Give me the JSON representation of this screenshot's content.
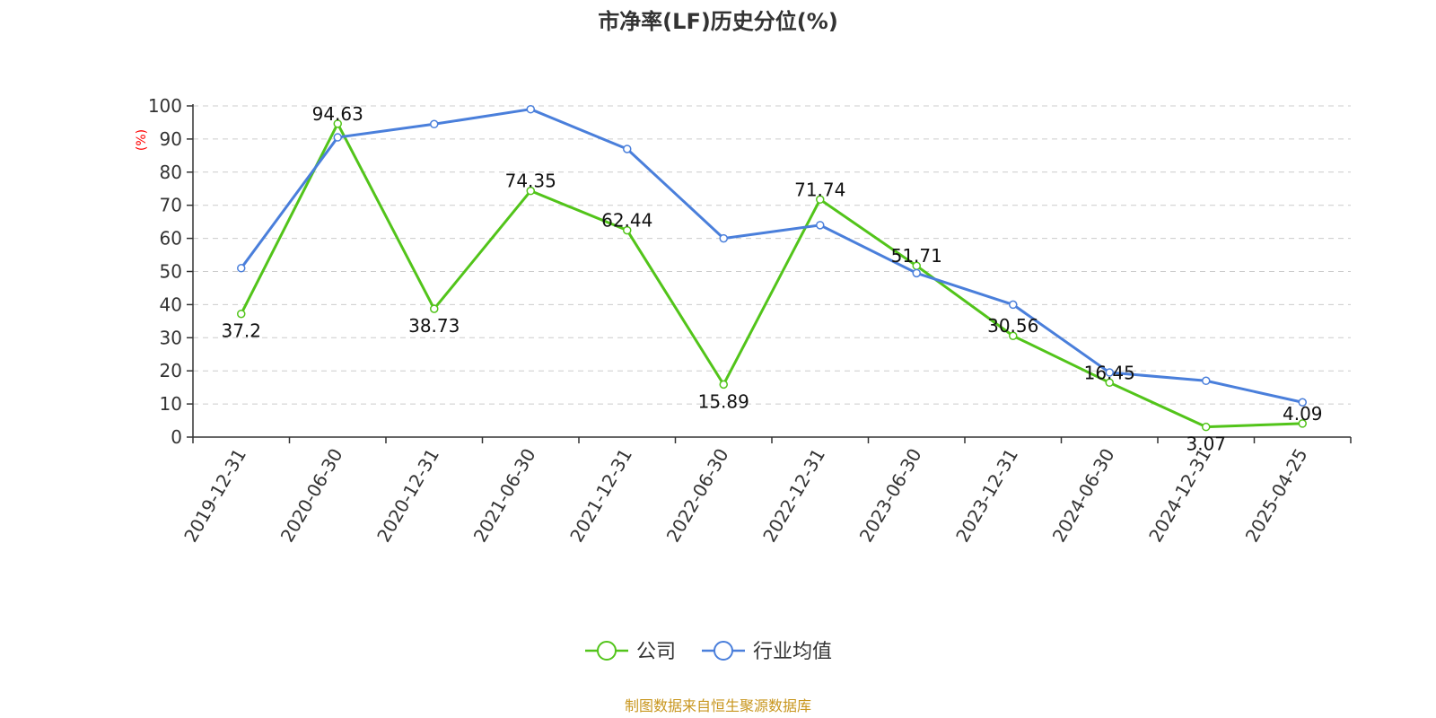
{
  "chart_data": {
    "type": "line",
    "title": "市净率(LF)历史分位(%)",
    "ylabel": "(%)",
    "xlabel": "",
    "ylim": [
      0,
      100
    ],
    "yticks": [
      0,
      10,
      20,
      30,
      40,
      50,
      60,
      70,
      80,
      90,
      100
    ],
    "grid": "horizontal-dashed",
    "legend_position": "bottom-center",
    "categories": [
      "2019-12-31",
      "2020-06-30",
      "2020-12-31",
      "2021-06-30",
      "2021-12-31",
      "2022-06-30",
      "2022-12-31",
      "2023-06-30",
      "2023-12-31",
      "2024-06-30",
      "2024-12-31",
      "2025-04-25"
    ],
    "series": [
      {
        "name": "公司",
        "color": "#52c41a",
        "values": [
          37.2,
          94.63,
          38.73,
          74.35,
          62.44,
          15.89,
          71.74,
          51.71,
          30.56,
          16.45,
          3.07,
          4.09
        ],
        "labels": [
          "37.2",
          "94.63",
          "38.73",
          "74.35",
          "62.44",
          "15.89",
          "71.74",
          "51.71",
          "30.56",
          "16.45",
          "3.07",
          "4.09"
        ]
      },
      {
        "name": "行业均值",
        "color": "#4a7fdb",
        "values": [
          51,
          90.5,
          94.5,
          99,
          87,
          60,
          64,
          49.5,
          40,
          19.5,
          17,
          10.5
        ]
      }
    ],
    "source": "制图数据来自恒生聚源数据库"
  }
}
